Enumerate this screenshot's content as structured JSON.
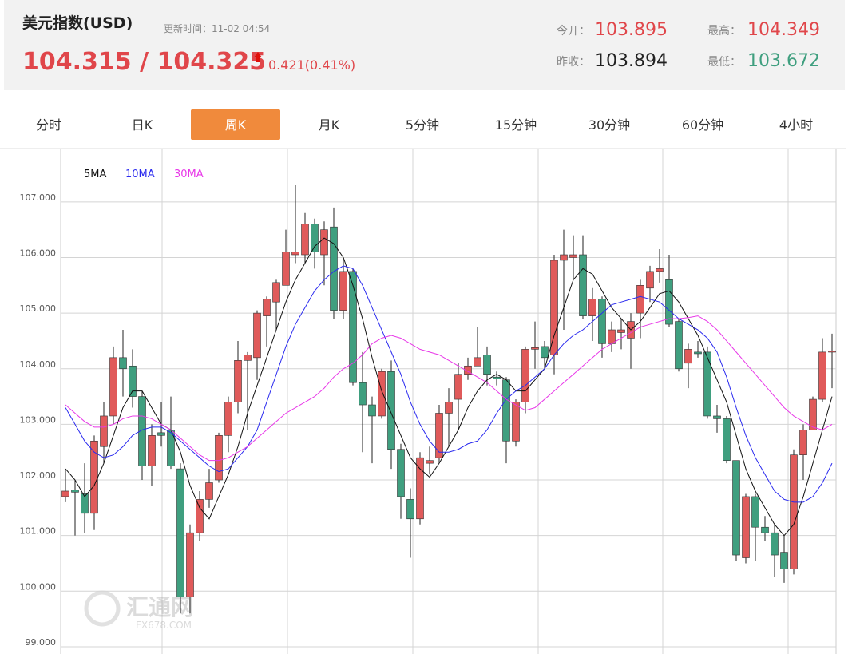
{
  "header": {
    "title": "美元指数(USD)",
    "update_time": "更新时间：11-02 04:54",
    "price": "104.315 / 104.325",
    "change": "0.421(0.41%)",
    "open_label": "今开：",
    "open": "103.895",
    "high_label": "最高：",
    "high": "104.349",
    "prev_close_label": "昨收：",
    "prev_close": "103.894",
    "low_label": "最低：",
    "low": "103.672"
  },
  "tabs": {
    "items": [
      "分时",
      "日K",
      "周K",
      "月K",
      "5分钟",
      "15分钟",
      "30分钟",
      "60分钟",
      "4小时"
    ],
    "active": 2
  },
  "watermark": {
    "name": "汇通网",
    "site": "FX678.COM"
  },
  "chart_data": {
    "type": "candlestick",
    "up_color": "#e05a5a",
    "down_color": "#3f9f7f",
    "ylim": [
      98.87,
      107.96
    ],
    "yticks": [
      {
        "value": 99,
        "label": "99.000"
      },
      {
        "value": 100,
        "label": "100.000"
      },
      {
        "value": 101,
        "label": "101.000"
      },
      {
        "value": 102,
        "label": "102.000"
      },
      {
        "value": 103,
        "label": "103.000"
      },
      {
        "value": 104,
        "label": "104.000"
      },
      {
        "value": 105,
        "label": "105.000"
      },
      {
        "value": 106,
        "label": "106.000"
      },
      {
        "value": 107,
        "label": "107.000"
      }
    ],
    "grid": true,
    "open": [
      101.7,
      101.82,
      101.75,
      101.4,
      102.6,
      103.15,
      104.2,
      104.05,
      103.5,
      102.25,
      102.85,
      102.9,
      102.2,
      99.9,
      101.05,
      101.65,
      102.0,
      102.8,
      103.4,
      104.15,
      104.2,
      104.95,
      105.2,
      105.5,
      106.05,
      106.05,
      106.6,
      106.05,
      106.55,
      105.05,
      105.75,
      103.75,
      103.35,
      103.15,
      103.95,
      102.55,
      101.65,
      101.3,
      102.3,
      102.4,
      103.2,
      103.45,
      103.9,
      104.05,
      104.25,
      103.85,
      103.8,
      102.7,
      103.4,
      104.35,
      104.4,
      104.25,
      105.95,
      106.0,
      106.05,
      104.95,
      105.25,
      104.45,
      104.65,
      104.55,
      105.0,
      105.45,
      105.75,
      105.6,
      104.85,
      104.1,
      104.3,
      104.3,
      103.15,
      103.1,
      102.35,
      100.6,
      101.7,
      101.15,
      101.05,
      100.7,
      100.4,
      102.45,
      102.9,
      103.45,
      104.3
    ],
    "high": [
      102.2,
      102.0,
      102.3,
      102.8,
      103.4,
      104.4,
      104.7,
      104.35,
      103.6,
      103.0,
      103.4,
      103.5,
      102.3,
      101.2,
      101.8,
      102.2,
      102.85,
      103.5,
      104.5,
      104.3,
      105.05,
      105.3,
      105.6,
      106.5,
      107.3,
      106.8,
      106.7,
      106.65,
      106.9,
      105.95,
      105.8,
      104.3,
      103.5,
      104.0,
      104.15,
      102.65,
      101.85,
      102.5,
      102.6,
      103.35,
      103.65,
      104.1,
      104.2,
      104.75,
      104.4,
      103.95,
      103.85,
      103.45,
      104.4,
      104.85,
      104.5,
      106.05,
      106.5,
      106.4,
      106.4,
      105.45,
      105.3,
      104.85,
      104.9,
      105.0,
      105.6,
      105.85,
      106.15,
      106.05,
      104.9,
      104.45,
      104.5,
      104.4,
      103.35,
      103.15,
      102.35,
      101.75,
      101.75,
      101.35,
      101.2,
      101.0,
      102.55,
      103.0,
      103.5,
      104.55,
      104.63
    ],
    "low": [
      101.6,
      101.0,
      101.05,
      101.1,
      102.3,
      103.0,
      103.5,
      103.3,
      102.0,
      101.9,
      102.6,
      102.2,
      99.6,
      99.6,
      100.9,
      101.5,
      101.95,
      102.5,
      103.2,
      102.9,
      103.8,
      104.4,
      104.7,
      105.5,
      105.9,
      105.9,
      105.8,
      105.5,
      104.9,
      104.9,
      103.7,
      102.5,
      102.3,
      103.1,
      102.2,
      101.3,
      100.6,
      101.2,
      102.1,
      102.3,
      102.6,
      102.9,
      103.8,
      104.05,
      103.7,
      103.7,
      102.3,
      102.6,
      103.2,
      104.0,
      104.0,
      103.9,
      104.7,
      105.6,
      104.9,
      104.5,
      104.2,
      104.3,
      104.35,
      104.0,
      104.55,
      105.2,
      105.55,
      104.75,
      103.95,
      103.65,
      104.2,
      103.1,
      102.85,
      102.3,
      100.55,
      100.5,
      100.55,
      100.9,
      100.25,
      100.15,
      100.3,
      102.0,
      102.9,
      103.4,
      103.65
    ],
    "close": [
      101.8,
      101.78,
      101.4,
      102.7,
      103.15,
      104.2,
      104.0,
      103.5,
      102.25,
      102.8,
      102.8,
      102.25,
      99.9,
      101.05,
      101.65,
      101.95,
      102.8,
      103.4,
      104.15,
      104.25,
      105.0,
      105.25,
      105.55,
      106.1,
      106.1,
      106.6,
      106.1,
      106.5,
      105.05,
      105.75,
      103.75,
      103.35,
      103.15,
      103.95,
      102.55,
      101.7,
      101.3,
      102.4,
      102.35,
      103.2,
      103.4,
      103.9,
      104.05,
      104.2,
      103.9,
      103.82,
      102.7,
      103.4,
      104.35,
      104.38,
      104.2,
      105.95,
      106.05,
      106.05,
      104.95,
      105.25,
      104.45,
      104.7,
      104.7,
      104.85,
      105.5,
      105.75,
      105.8,
      104.8,
      104.0,
      104.35,
      104.27,
      103.15,
      103.1,
      102.35,
      100.65,
      101.7,
      101.15,
      101.05,
      100.65,
      100.4,
      102.45,
      102.9,
      103.45,
      104.3,
      104.32
    ],
    "series": [
      {
        "name": "5MA",
        "color": "#111111",
        "values": [
          102.2,
          102.0,
          101.7,
          101.9,
          102.3,
          102.8,
          103.3,
          103.6,
          103.6,
          103.3,
          103.0,
          102.9,
          102.5,
          101.9,
          101.5,
          101.3,
          101.7,
          102.1,
          102.6,
          103.2,
          103.7,
          104.2,
          104.7,
          105.2,
          105.6,
          105.9,
          106.2,
          106.35,
          106.25,
          106.0,
          105.5,
          104.9,
          104.2,
          103.6,
          103.2,
          102.8,
          102.4,
          102.2,
          102.05,
          102.3,
          102.6,
          102.9,
          103.3,
          103.6,
          103.8,
          103.9,
          103.8,
          103.6,
          103.6,
          103.8,
          104.0,
          104.6,
          105.1,
          105.6,
          105.8,
          105.7,
          105.4,
          105.1,
          104.9,
          104.7,
          104.85,
          105.1,
          105.35,
          105.4,
          105.2,
          104.9,
          104.6,
          104.2,
          103.8,
          103.4,
          102.8,
          102.2,
          101.8,
          101.5,
          101.2,
          101.0,
          101.2,
          101.7,
          102.3,
          102.9,
          103.5
        ]
      },
      {
        "name": "10MA",
        "color": "#2b2bef",
        "values": [
          103.3,
          103.0,
          102.7,
          102.5,
          102.4,
          102.45,
          102.6,
          102.8,
          102.9,
          102.95,
          102.95,
          102.85,
          102.7,
          102.55,
          102.4,
          102.25,
          102.15,
          102.2,
          102.4,
          102.6,
          102.9,
          103.4,
          103.9,
          104.4,
          104.8,
          105.1,
          105.4,
          105.6,
          105.75,
          105.85,
          105.8,
          105.5,
          105.1,
          104.7,
          104.3,
          103.9,
          103.4,
          103.0,
          102.7,
          102.5,
          102.5,
          102.55,
          102.65,
          102.7,
          102.9,
          103.2,
          103.45,
          103.6,
          103.7,
          103.85,
          104.0,
          104.25,
          104.45,
          104.6,
          104.7,
          104.85,
          105.0,
          105.15,
          105.2,
          105.25,
          105.3,
          105.25,
          105.2,
          105.05,
          104.9,
          104.8,
          104.7,
          104.55,
          104.3,
          103.85,
          103.3,
          102.8,
          102.4,
          102.1,
          101.8,
          101.65,
          101.6,
          101.6,
          101.7,
          101.95,
          102.3
        ]
      },
      {
        "name": "30MA",
        "color": "#e838e8",
        "values": [
          103.35,
          103.2,
          103.05,
          102.95,
          102.95,
          103.0,
          103.1,
          103.15,
          103.15,
          103.1,
          103.0,
          102.9,
          102.75,
          102.6,
          102.45,
          102.35,
          102.35,
          102.4,
          102.5,
          102.6,
          102.75,
          102.9,
          103.05,
          103.2,
          103.3,
          103.4,
          103.5,
          103.65,
          103.85,
          104.0,
          104.1,
          104.25,
          104.45,
          104.55,
          104.6,
          104.55,
          104.45,
          104.35,
          104.3,
          104.25,
          104.15,
          104.05,
          103.95,
          103.85,
          103.75,
          103.6,
          103.45,
          103.35,
          103.25,
          103.3,
          103.45,
          103.6,
          103.75,
          103.9,
          104.05,
          104.2,
          104.35,
          104.45,
          104.55,
          104.65,
          104.75,
          104.8,
          104.85,
          104.9,
          104.9,
          104.92,
          104.95,
          104.85,
          104.7,
          104.5,
          104.3,
          104.1,
          103.9,
          103.7,
          103.5,
          103.3,
          103.15,
          103.05,
          102.95,
          102.9,
          103.0
        ]
      }
    ]
  }
}
